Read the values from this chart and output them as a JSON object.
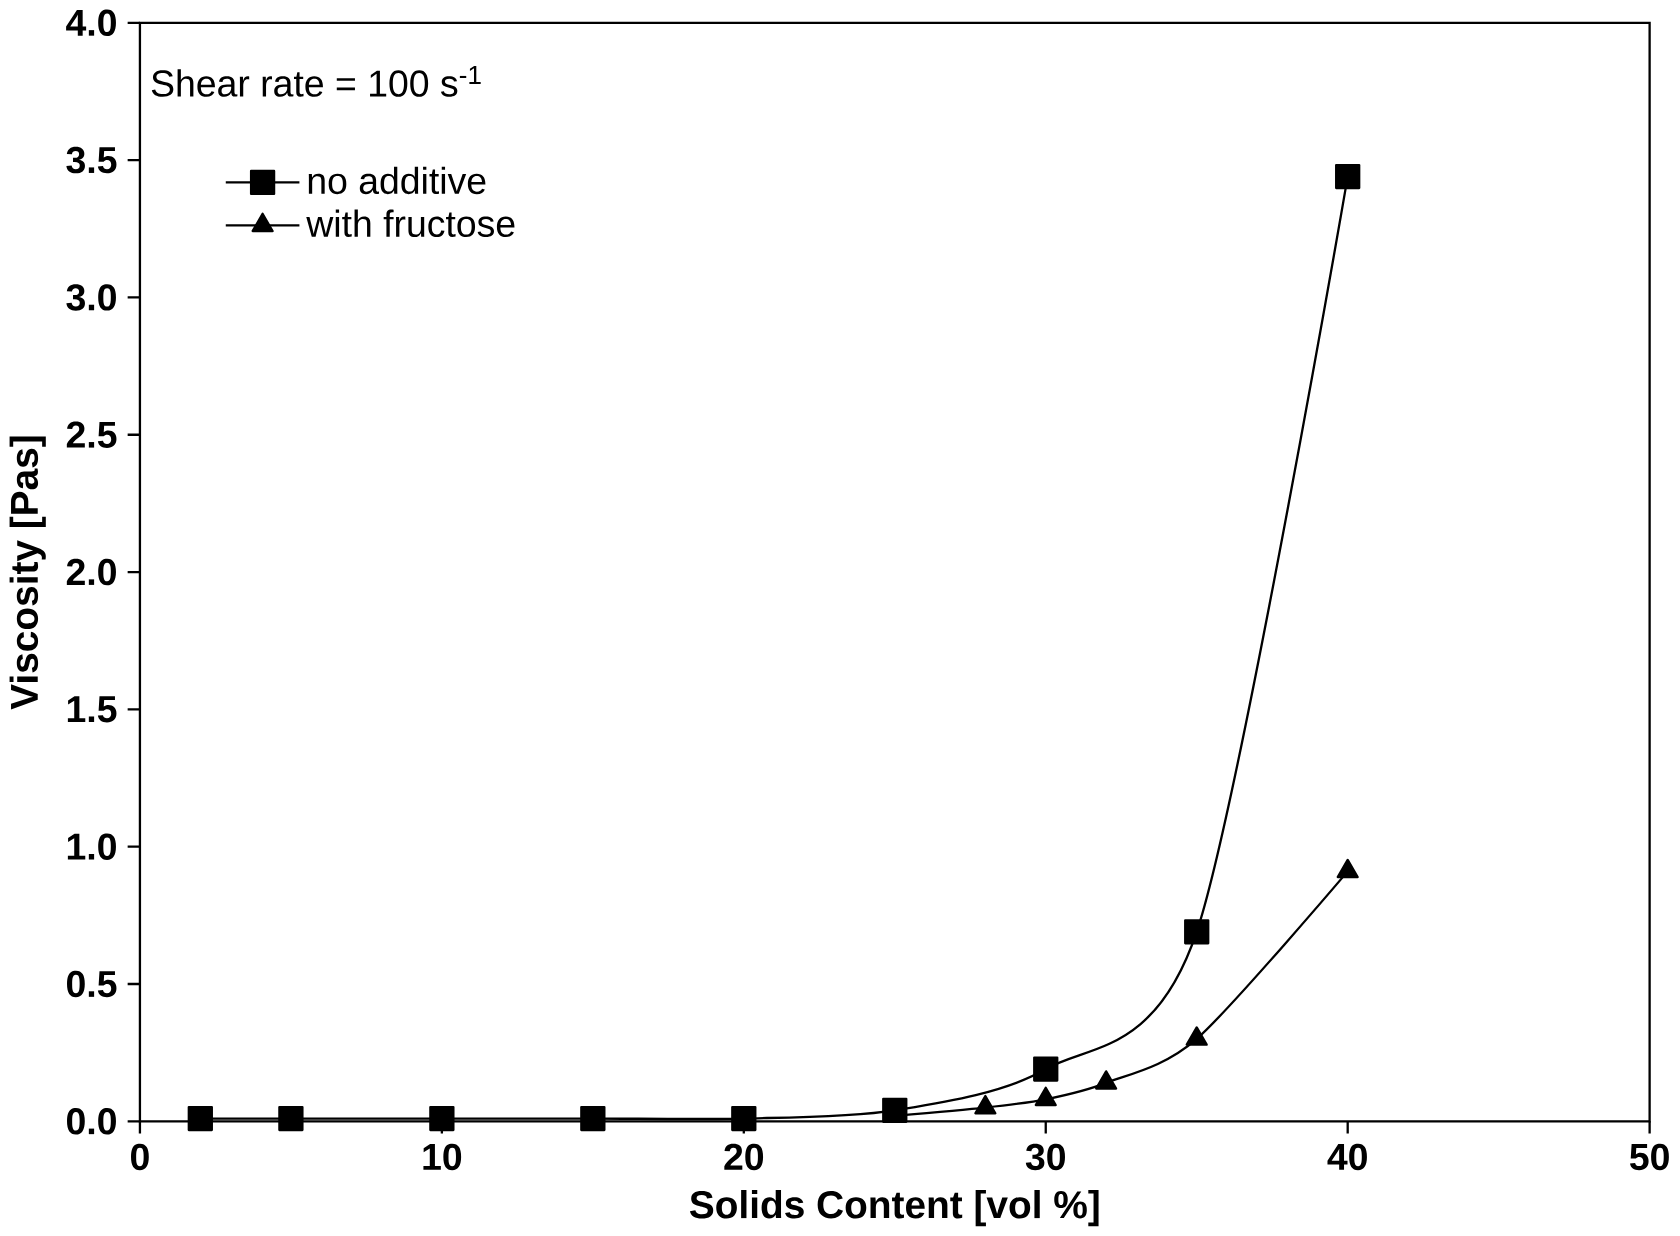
{
  "chart_data": {
    "type": "line",
    "xlabel": "Solids Content [vol %]",
    "ylabel": "Viscosity [Pas]",
    "annotations": [
      "Shear rate = 100 s$^{-1}$"
    ],
    "xlim": [
      0,
      50
    ],
    "xticks": [
      0,
      10,
      20,
      30,
      40,
      50
    ],
    "ylim": [
      0,
      4
    ],
    "yticks": [
      {
        "value": 0,
        "label": "0.0"
      },
      {
        "value": 0.5,
        "label": "0.5"
      },
      {
        "value": 1,
        "label": "1.0"
      },
      {
        "value": 1.5,
        "label": "1.5"
      },
      {
        "value": 2,
        "label": "2.0"
      },
      {
        "value": 2.5,
        "label": "2.5"
      },
      {
        "value": 3,
        "label": "3.0"
      },
      {
        "value": 3.5,
        "label": "3.5"
      },
      {
        "value": 4,
        "label": "4.0"
      }
    ],
    "legend": "top left",
    "grid": false,
    "series": [
      {
        "name": "no additive",
        "color": "#000000",
        "marker": "square",
        "x": [
          2,
          5,
          10,
          15,
          20,
          25,
          30,
          35,
          40
        ],
        "values": [
          0.01,
          0.01,
          0.01,
          0.01,
          0.01,
          0.04,
          0.19,
          0.69,
          3.44
        ]
      },
      {
        "name": "with fructose",
        "color": "#000000",
        "marker": "triangle",
        "x": [
          25,
          28,
          30,
          32,
          35,
          40
        ],
        "values": [
          0.02,
          0.05,
          0.08,
          0.14,
          0.3,
          0.91
        ]
      }
    ]
  }
}
